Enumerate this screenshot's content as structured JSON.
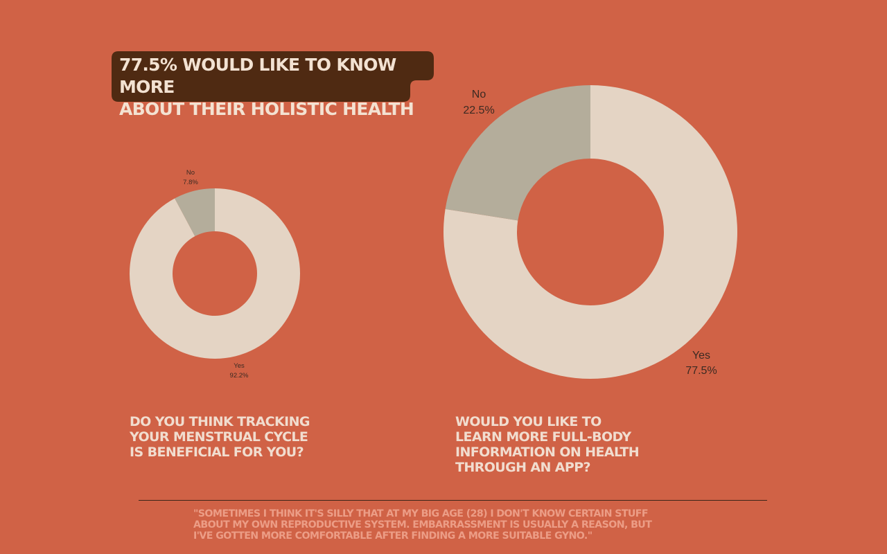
{
  "headline": {
    "text": "77.5% WOULD LIKE TO KNOW MORE\nABOUT THEIR HOLISTIC HEALTH",
    "bg_color": "#4f2a12"
  },
  "colors": {
    "background": "#d06246",
    "yes": "#e4d4c4",
    "no": "#b4ad9b",
    "label_text": "#3b2a22",
    "question_text": "#f1ddcf",
    "quote_text": "#ec9d86"
  },
  "chart_data": [
    {
      "type": "pie",
      "style": "donut",
      "categories": [
        "Yes",
        "No"
      ],
      "values": [
        92.2,
        7.8
      ],
      "labels": [
        {
          "name": "Yes",
          "value": "92.2%"
        },
        {
          "name": "No",
          "value": "7.8%"
        }
      ],
      "title": "DO YOU THINK TRACKING\nYOUR MENSTRUAL CYCLE\nIS BENEFICIAL FOR YOU?"
    },
    {
      "type": "pie",
      "style": "donut",
      "categories": [
        "Yes",
        "No"
      ],
      "values": [
        77.5,
        22.5
      ],
      "labels": [
        {
          "name": "Yes",
          "value": "77.5%"
        },
        {
          "name": "No",
          "value": "22.5%"
        }
      ],
      "title": "WOULD YOU LIKE TO\nLEARN MORE FULL-BODY\nINFORMATION ON HEALTH\nTHROUGH AN APP?"
    }
  ],
  "quote": "\"SOMETIMES I THINK IT'S SILLY THAT AT MY BIG AGE (28) I DON'T KNOW CERTAIN STUFF\nABOUT MY OWN REPRODUCTIVE SYSTEM. EMBARRASSMENT IS USUALLY A REASON, BUT\nI'VE GOTTEN MORE COMFORTABLE AFTER FINDING A MORE SUITABLE GYNO.\""
}
